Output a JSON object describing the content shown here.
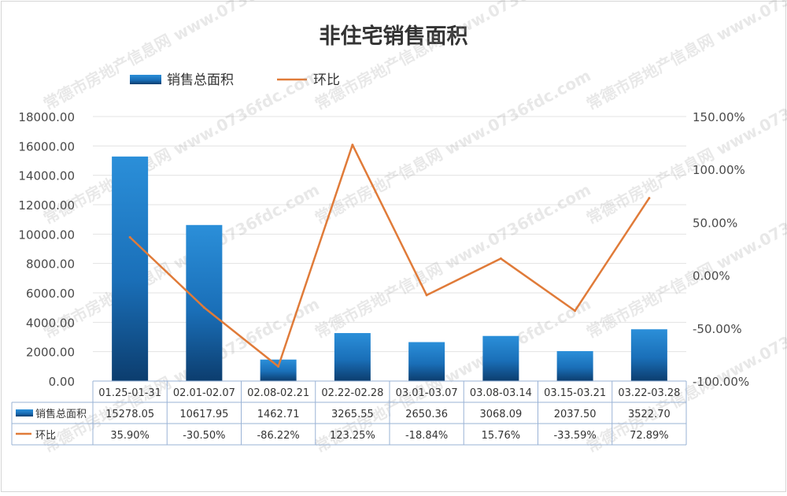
{
  "chart_data": {
    "type": "bar",
    "title": "非住宅销售面积",
    "categories": [
      "01.25-01-31",
      "02.01-02.07",
      "02.08-02.21",
      "02.22-02.28",
      "03.01-03.07",
      "03.08-03.14",
      "03.15-03.21",
      "03.22-03.28"
    ],
    "series": [
      {
        "name": "销售总面积",
        "type": "bar",
        "axis": "left",
        "color": "#1a78c2",
        "values": [
          15278.05,
          10617.95,
          1462.71,
          3265.55,
          2650.36,
          3068.09,
          2037.5,
          3522.7
        ],
        "labels": [
          "15278.05",
          "10617.95",
          "1462.71",
          "3265.55",
          "2650.36",
          "3068.09",
          "2037.50",
          "3522.70"
        ]
      },
      {
        "name": "环比",
        "type": "line",
        "axis": "right",
        "color": "#e07b39",
        "values": [
          35.9,
          -30.5,
          -86.22,
          123.25,
          -18.84,
          15.76,
          -33.59,
          72.89
        ],
        "labels": [
          "35.90%",
          "-30.50%",
          "-86.22%",
          "123.25%",
          "-18.84%",
          "15.76%",
          "-33.59%",
          "72.89%"
        ]
      }
    ],
    "y_left": {
      "range": [
        0,
        18000
      ],
      "ticks": [
        0,
        2000,
        4000,
        6000,
        8000,
        10000,
        12000,
        14000,
        16000,
        18000
      ],
      "tick_labels": [
        "0.00",
        "2000.00",
        "4000.00",
        "6000.00",
        "8000.00",
        "10000.00",
        "12000.00",
        "14000.00",
        "16000.00",
        "18000.00"
      ]
    },
    "y_right": {
      "range": [
        -100,
        150
      ],
      "ticks": [
        -100,
        -50,
        0,
        50,
        100,
        150
      ],
      "tick_labels": [
        "-100.00%",
        "-50.00%",
        "0.00%",
        "50.00%",
        "100.00%",
        "150.00%"
      ]
    },
    "grid": true,
    "legend": "top",
    "data_table": true
  },
  "watermark": "常德市房地产信息网 www.0736fdc.com"
}
